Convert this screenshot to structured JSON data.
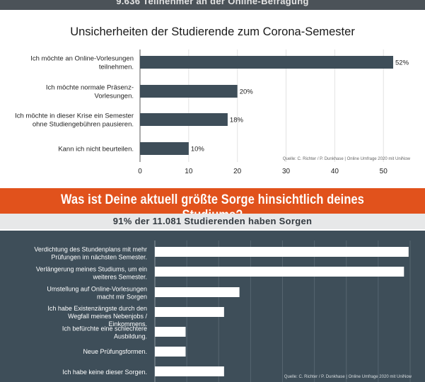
{
  "header": {
    "top_text": "9.636 Teilnehmer an der Online-Befragung"
  },
  "banner": {
    "title": "Was ist Deine aktuell größte Sorge hinsichtlich deines Studiums?"
  },
  "section2": {
    "subtitle": "91% der 11.081 Studierenden haben Sorgen"
  },
  "colors": {
    "bar_dark": "#3e4e59",
    "bar_light": "#ffffff",
    "banner": "#e1521c",
    "panel": "#3e4e59"
  },
  "chart_data": [
    {
      "type": "bar",
      "orientation": "horizontal",
      "title": "Unsicherheiten der Studierende zum Corona-Semester",
      "categories": [
        [
          "Ich möchte an Online-Vorlesungen",
          "teilnehmen."
        ],
        [
          "Ich möchte normale Präsenz-",
          "Vorlesungen."
        ],
        [
          "Ich möchte in dieser Krise ein Semester",
          "ohne Studiengebühren pausieren."
        ],
        [
          "Kann ich nicht beurteilen."
        ]
      ],
      "values": [
        52,
        20,
        18,
        10
      ],
      "value_labels": [
        "52%",
        "20%",
        "18%",
        "10%"
      ],
      "xlim": [
        0,
        52
      ],
      "xticks": [
        0,
        10,
        20,
        30,
        40,
        50
      ],
      "source": "Quelle: C. Richter / P. Dunkhase | Online Umfrage 2020 mit UniNow",
      "grid": true
    },
    {
      "type": "bar",
      "orientation": "horizontal",
      "categories": [
        [
          "Verdichtung des Stundenplans mit mehr",
          "Prüfungen im nächsten Semester."
        ],
        [
          "Verlängerung meines Studiums, um ein",
          "weiteres Semester."
        ],
        [
          "Umstellung auf Online-Vorlesungen",
          "macht mir Sorgen"
        ],
        [
          "Ich habe Existenzängste durch den",
          "Wegfall meines Nebenjobs /",
          "Einkommens."
        ],
        [
          "Ich befürchte eine schlechtere",
          "Ausbildung."
        ],
        [
          "Neue Prüfungsformen."
        ],
        [
          "Ich habe keine dieser Sorgen."
        ]
      ],
      "values": [
        33,
        32.4,
        11,
        9,
        4,
        4,
        9
      ],
      "xlim": [
        0,
        33.2
      ],
      "source": "Quelle: C. Richter / P. Dunkhase | Online Umfrage 2020 mit UniNow",
      "grid": true
    }
  ]
}
